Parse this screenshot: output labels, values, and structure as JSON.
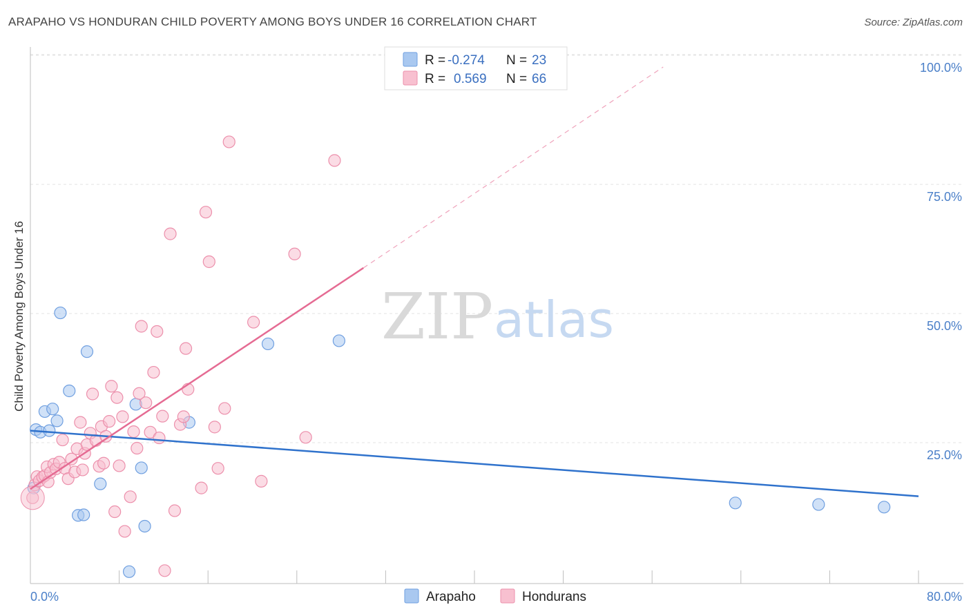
{
  "title": "ARAPAHO VS HONDURAN CHILD POVERTY AMONG BOYS UNDER 16 CORRELATION CHART",
  "source": "Source: ZipAtlas.com",
  "watermark": {
    "zip": "ZIP",
    "atlas": "atlas"
  },
  "legend": {
    "rows": [
      {
        "r_label": "R =",
        "r_value": "-0.274",
        "n_label": "N =",
        "n_value": "23",
        "color": "#a9c8f0",
        "stroke": "#6f9fe0"
      },
      {
        "r_label": "R =",
        "r_value": "0.569",
        "n_label": "N =",
        "n_value": "66",
        "color": "#f8c0d0",
        "stroke": "#ec8fab"
      }
    ]
  },
  "chart_data": {
    "type": "scatter",
    "title": "ARAPAHO VS HONDURAN CHILD POVERTY AMONG BOYS UNDER 16 CORRELATION CHART",
    "xlabel": "",
    "ylabel": "Child Poverty Among Boys Under 16",
    "xlim": [
      0,
      80
    ],
    "ylim": [
      0,
      100
    ],
    "x_tick_labels": [
      "0.0%",
      "80.0%"
    ],
    "y_ticks": [
      25,
      50,
      75,
      100
    ],
    "y_tick_labels": [
      "25.0%",
      "50.0%",
      "75.0%",
      "100.0%"
    ],
    "grid": true,
    "series": [
      {
        "name": "Arapaho",
        "color": "#a9c8f0",
        "stroke": "#6f9fe0",
        "line_color": "#2f72cc",
        "points": [
          [
            0.3,
            18.5
          ],
          [
            0.5,
            29.8
          ],
          [
            0.9,
            29.3
          ],
          [
            1.3,
            33.3
          ],
          [
            1.7,
            29.6
          ],
          [
            2.0,
            33.8
          ],
          [
            2.4,
            31.5
          ],
          [
            2.7,
            52.4
          ],
          [
            3.5,
            37.3
          ],
          [
            4.3,
            13.2
          ],
          [
            4.8,
            13.3
          ],
          [
            5.1,
            44.9
          ],
          [
            6.3,
            19.3
          ],
          [
            8.9,
            2.3
          ],
          [
            9.5,
            34.7
          ],
          [
            10.0,
            22.4
          ],
          [
            10.3,
            11.1
          ],
          [
            14.3,
            31.2
          ],
          [
            21.4,
            46.4
          ],
          [
            27.8,
            47.0
          ],
          [
            63.5,
            15.6
          ],
          [
            71.0,
            15.3
          ],
          [
            76.9,
            14.8
          ]
        ],
        "trend": {
          "x": [
            0,
            80
          ],
          "y": [
            29.6,
            16.9
          ]
        }
      },
      {
        "name": "Hondurans",
        "color": "#f8c0d0",
        "stroke": "#ec8fab",
        "line_color": "#e56b93",
        "points": [
          [
            0.2,
            16.6
          ],
          [
            0.4,
            19.1
          ],
          [
            0.6,
            20.7
          ],
          [
            0.8,
            19.9
          ],
          [
            1.1,
            20.6
          ],
          [
            1.3,
            20.9
          ],
          [
            1.5,
            22.6
          ],
          [
            1.6,
            19.7
          ],
          [
            1.8,
            21.5
          ],
          [
            2.1,
            23.1
          ],
          [
            2.3,
            22.2
          ],
          [
            2.6,
            23.5
          ],
          [
            2.9,
            27.8
          ],
          [
            3.1,
            22.3
          ],
          [
            3.4,
            20.3
          ],
          [
            3.7,
            24.1
          ],
          [
            4.0,
            21.6
          ],
          [
            4.2,
            26.1
          ],
          [
            4.5,
            31.2
          ],
          [
            4.7,
            22.0
          ],
          [
            4.9,
            25.2
          ],
          [
            5.1,
            26.9
          ],
          [
            5.4,
            29.1
          ],
          [
            5.6,
            36.7
          ],
          [
            5.9,
            27.7
          ],
          [
            6.2,
            22.7
          ],
          [
            6.4,
            30.4
          ],
          [
            6.6,
            23.3
          ],
          [
            6.8,
            28.5
          ],
          [
            7.1,
            31.4
          ],
          [
            7.3,
            38.2
          ],
          [
            7.6,
            13.9
          ],
          [
            7.8,
            36.0
          ],
          [
            8.0,
            22.8
          ],
          [
            8.3,
            32.3
          ],
          [
            8.5,
            10.1
          ],
          [
            9.0,
            16.8
          ],
          [
            9.3,
            29.4
          ],
          [
            9.6,
            26.2
          ],
          [
            9.8,
            36.8
          ],
          [
            10.0,
            49.8
          ],
          [
            10.4,
            35.0
          ],
          [
            10.8,
            29.3
          ],
          [
            11.1,
            40.9
          ],
          [
            11.4,
            48.8
          ],
          [
            11.6,
            28.2
          ],
          [
            11.9,
            32.4
          ],
          [
            12.1,
            2.5
          ],
          [
            12.6,
            67.7
          ],
          [
            13.0,
            14.1
          ],
          [
            13.5,
            30.8
          ],
          [
            13.8,
            32.3
          ],
          [
            14.0,
            45.5
          ],
          [
            14.2,
            37.6
          ],
          [
            15.4,
            18.5
          ],
          [
            15.8,
            71.9
          ],
          [
            16.1,
            62.3
          ],
          [
            16.6,
            30.3
          ],
          [
            16.9,
            22.3
          ],
          [
            17.5,
            33.9
          ],
          [
            17.9,
            85.5
          ],
          [
            20.1,
            50.6
          ],
          [
            20.8,
            19.8
          ],
          [
            23.8,
            63.8
          ],
          [
            24.8,
            28.3
          ],
          [
            27.4,
            81.9
          ]
        ],
        "trend": {
          "x": [
            0,
            30
          ],
          "y": [
            18.3,
            61.1
          ]
        },
        "trend_dashed": {
          "x": [
            30,
            57
          ],
          "y": [
            61.1,
            100
          ]
        }
      }
    ]
  }
}
